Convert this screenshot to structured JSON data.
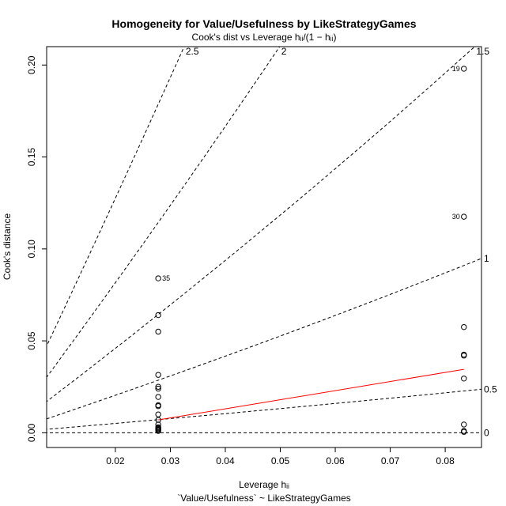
{
  "chart_data": {
    "type": "scatter",
    "title": "Homogeneity for Value/Usefulness by LikeStrategyGames",
    "subtitle": "Cook's dist vs Leverage  hᵢᵢ/(1 − hᵢᵢ)",
    "xlabel": "Leverage  hᵢᵢ",
    "ylabel": "Cook's distance",
    "model_formula": "`Value/Usefulness` ~ LikeStrategyGames",
    "xlim": [
      0.0075,
      0.0866
    ],
    "ylim": [
      -0.008,
      0.21
    ],
    "x_ticks": [
      "0.02",
      "0.03",
      "0.04",
      "0.05",
      "0.06",
      "0.07",
      "0.08"
    ],
    "y_ticks": [
      "0.00",
      "0.05",
      "0.10",
      "0.15",
      "0.20"
    ],
    "points": [
      {
        "x": 0.0278,
        "y": 0.001
      },
      {
        "x": 0.0278,
        "y": 0.0015
      },
      {
        "x": 0.0278,
        "y": 0.002
      },
      {
        "x": 0.0278,
        "y": 0.0025
      },
      {
        "x": 0.0278,
        "y": 0.003
      },
      {
        "x": 0.0278,
        "y": 0.0045
      },
      {
        "x": 0.0278,
        "y": 0.007
      },
      {
        "x": 0.0278,
        "y": 0.01
      },
      {
        "x": 0.0278,
        "y": 0.0145
      },
      {
        "x": 0.0278,
        "y": 0.015
      },
      {
        "x": 0.0278,
        "y": 0.0195
      },
      {
        "x": 0.0278,
        "y": 0.024
      },
      {
        "x": 0.0278,
        "y": 0.025
      },
      {
        "x": 0.0278,
        "y": 0.0315
      },
      {
        "x": 0.0278,
        "y": 0.055
      },
      {
        "x": 0.0278,
        "y": 0.064
      },
      {
        "x": 0.0278,
        "y": 0.084,
        "label": "35"
      },
      {
        "x": 0.0834,
        "y": 0.0005
      },
      {
        "x": 0.0834,
        "y": 0.001
      },
      {
        "x": 0.0834,
        "y": 0.0045
      },
      {
        "x": 0.0834,
        "y": 0.0295
      },
      {
        "x": 0.0834,
        "y": 0.042
      },
      {
        "x": 0.0834,
        "y": 0.0425
      },
      {
        "x": 0.0834,
        "y": 0.0575
      },
      {
        "x": 0.0834,
        "y": 0.1175,
        "label": "30"
      },
      {
        "x": 0.0834,
        "y": 0.198,
        "label": "19"
      }
    ],
    "smooth_line": {
      "color": "#ff0000",
      "x": [
        0.0278,
        0.0834
      ],
      "y": [
        0.007,
        0.0345
      ]
    },
    "contours": [
      {
        "label": "0",
        "slope": 0
      },
      {
        "label": "0.5",
        "slope": 0.25
      },
      {
        "label": "1",
        "slope": 1
      },
      {
        "label": "1.5",
        "slope": 2.25
      },
      {
        "label": "2",
        "slope": 4
      },
      {
        "label": "2.5",
        "slope": 6.25
      }
    ],
    "grid": false
  }
}
